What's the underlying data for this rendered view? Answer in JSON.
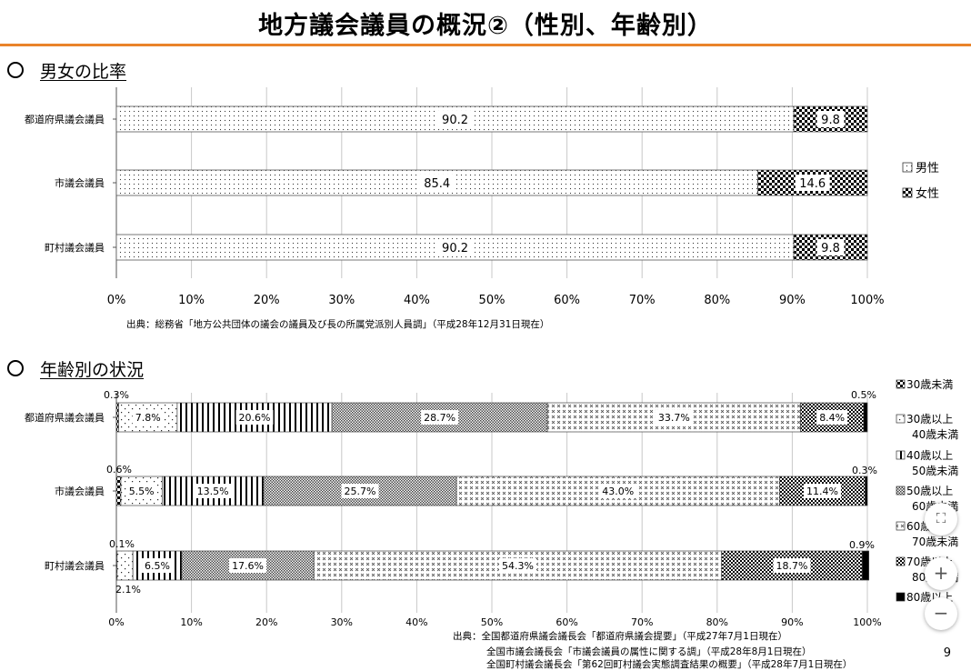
{
  "page": {
    "title": "地方議会議員の概況②（性別、年齢別）",
    "page_number": "9"
  },
  "gender_section": {
    "heading": "男女の比率",
    "source": "出典：総務省「地方公共団体の議会の議員及び長の所属党派別人員調」（平成28年12月31日現在）"
  },
  "age_section": {
    "heading": "年齢別の状況",
    "source_lines": [
      "出典：全国都道府県議会議長会「都道府県議会提要」（平成27年7月1日現在）",
      "全国市議会議長会「市議会議員の属性に関する調」（平成28年8月1日現在）",
      "全国町村議会議長会「第62回町村議会実態調査結果の概要」（平成28年7月1日現在）"
    ]
  },
  "controls": {
    "fit_icon": "fit-screen-icon",
    "zoom_in_icon": "plus-icon",
    "zoom_out_icon": "minus-icon"
  },
  "chart_data": [
    {
      "type": "bar",
      "orientation": "horizontal",
      "stacked": true,
      "categories": [
        "都道府県議会議員",
        "市議会議員",
        "町村議会議員"
      ],
      "series": [
        {
          "name": "男性",
          "values": [
            90.2,
            85.4,
            90.2
          ],
          "labels": [
            "90.2",
            "85.4",
            "90.2"
          ]
        },
        {
          "name": "女性",
          "values": [
            9.8,
            14.6,
            9.8
          ],
          "labels": [
            "9.8",
            "14.6",
            "9.8"
          ]
        }
      ],
      "x_ticks": [
        "0%",
        "10%",
        "20%",
        "30%",
        "40%",
        "50%",
        "60%",
        "70%",
        "80%",
        "90%",
        "100%"
      ],
      "xlim": [
        0,
        100
      ],
      "grid": "vertical",
      "legend_position": "right"
    },
    {
      "type": "bar",
      "orientation": "horizontal",
      "stacked": true,
      "categories": [
        "都道府県議会議員",
        "市議会議員",
        "町村議会議員"
      ],
      "series": [
        {
          "name": "30歳未満",
          "values": [
            0.3,
            0.6,
            0.1
          ],
          "labels": [
            "0.3%",
            "0.6%",
            "0.1%"
          ]
        },
        {
          "name": "30歳以上40歳未満",
          "values": [
            7.8,
            5.5,
            2.1
          ],
          "labels": [
            "7.8%",
            "5.5%",
            "2.1%"
          ]
        },
        {
          "name": "40歳以上50歳未満",
          "values": [
            20.6,
            13.5,
            6.5
          ],
          "labels": [
            "20.6%",
            "13.5%",
            "6.5%"
          ]
        },
        {
          "name": "50歳以上60歳未満",
          "values": [
            28.7,
            25.7,
            17.6
          ],
          "labels": [
            "28.7%",
            "25.7%",
            "17.6%"
          ]
        },
        {
          "name": "60歳以上70歳未満",
          "values": [
            33.7,
            43.0,
            54.3
          ],
          "labels": [
            "33.7%",
            "43.0%",
            "54.3%"
          ]
        },
        {
          "name": "70歳以上80歳未満",
          "values": [
            8.4,
            11.4,
            18.7
          ],
          "labels": [
            "8.4%",
            "11.4%",
            "18.7%"
          ]
        },
        {
          "name": "80歳以上",
          "values": [
            0.5,
            0.3,
            0.9
          ],
          "labels": [
            "0.5%",
            "0.3%",
            "0.9%"
          ]
        }
      ],
      "legend_lines": [
        [
          "30歳未満"
        ],
        [
          "30歳以上",
          "40歳未満"
        ],
        [
          "40歳以上",
          "50歳未満"
        ],
        [
          "50歳以上",
          "60歳未満"
        ],
        [
          "60歳以上",
          "70歳未満"
        ],
        [
          "70歳以上",
          "80歳未満"
        ],
        [
          "80歳以上"
        ]
      ],
      "x_ticks": [
        "0%",
        "10%",
        "20%",
        "30%",
        "40%",
        "50%",
        "60%",
        "70%",
        "80%",
        "90%",
        "100%"
      ],
      "xlim": [
        0,
        100
      ],
      "grid": "vertical",
      "legend_position": "right"
    }
  ]
}
